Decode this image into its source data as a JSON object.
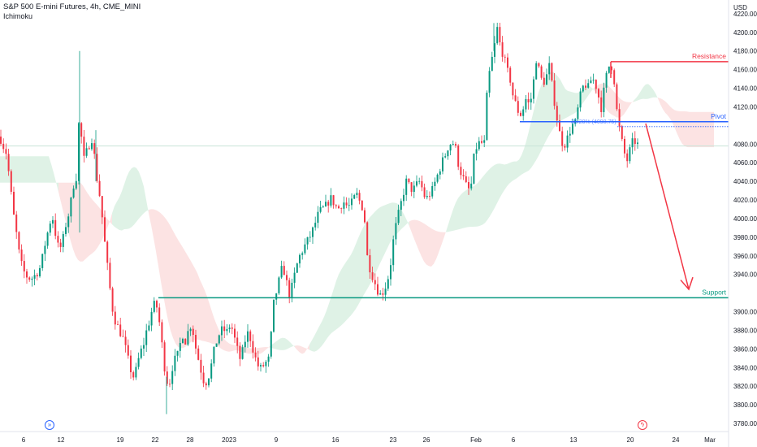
{
  "header": {
    "title": "S&P 500 E-mini Futures, 4h, CME_MINI",
    "indicator": "Ichimoku"
  },
  "axis": {
    "currency": "USD",
    "y_ticks": [
      4220,
      4200,
      4180,
      4160,
      4140,
      4120,
      4100,
      4080,
      4060,
      4040,
      4020,
      4000,
      3980,
      3960,
      3940,
      3920,
      3900,
      3880,
      3860,
      3840,
      3820,
      3800,
      3780
    ],
    "y_tick_labels": [
      "4220.00",
      "4200.00",
      "4180.00",
      "4160.00",
      "4140.00",
      "4120.00",
      "4100.00",
      "4080.00",
      "4060.00",
      "4040.00",
      "4020.00",
      "4000.00",
      "3980.00",
      "3960.00",
      "3940.00",
      "3920.00",
      "3900.00",
      "3880.00",
      "3860.00",
      "3840.00",
      "3820.00",
      "3800.00",
      "3780.00"
    ],
    "x_labels": [
      "6",
      "12",
      "19",
      "22",
      "28",
      "2023",
      "9",
      "16",
      "23",
      "26",
      "Feb",
      "6",
      "13",
      "20",
      "24",
      "Mar"
    ],
    "ylim": [
      3780,
      4226
    ]
  },
  "levels": {
    "resistance": {
      "label": "Resistance",
      "value_label": "4168.50",
      "value": 4168.5,
      "color": "#f23645"
    },
    "pivot": {
      "label": "Pivot",
      "value_label": "4104.00",
      "value": 4104.0,
      "color": "#2962ff"
    },
    "support": {
      "label": "Support",
      "value_label": "3915.00",
      "value": 3915.0,
      "color": "#089981"
    },
    "fib_label": "38.20% (4098.75)"
  },
  "colors": {
    "up": "#089981",
    "down": "#f23645",
    "cloud_up": "#d7efe0",
    "cloud_down": "#fbdcdc",
    "current_price_line": "#c9e4d8"
  },
  "icons": {
    "left_badge": "calendar-forward-icon",
    "right_badge": "lightning-icon"
  },
  "chart_data": {
    "type": "candlestick",
    "title": "S&P 500 E-mini Futures, 4h, CME_MINI",
    "series": [
      {
        "name": "price",
        "anchors": [
          [
            0,
            4088
          ],
          [
            3,
            4080
          ],
          [
            8,
            4070
          ],
          [
            12,
            4040
          ],
          [
            16,
            4008
          ],
          [
            20,
            3985
          ],
          [
            24,
            3960
          ],
          [
            28,
            3945
          ],
          [
            33,
            3938
          ],
          [
            38,
            3935
          ],
          [
            44,
            3940
          ],
          [
            50,
            3948
          ],
          [
            56,
            3975
          ],
          [
            60,
            3990
          ],
          [
            64,
            4005
          ],
          [
            68,
            3985
          ],
          [
            72,
            3968
          ],
          [
            76,
            3970
          ],
          [
            80,
            3990
          ],
          [
            86,
            4010
          ],
          [
            90,
            4035
          ],
          [
            94,
            4045
          ],
          [
            98,
            4120
          ],
          [
            102,
            4060
          ],
          [
            106,
            4070
          ],
          [
            110,
            4080
          ],
          [
            114,
            4088
          ],
          [
            118,
            4050
          ],
          [
            122,
            4030
          ],
          [
            126,
            4000
          ],
          [
            130,
            3965
          ],
          [
            134,
            3935
          ],
          [
            138,
            3905
          ],
          [
            142,
            3890
          ],
          [
            148,
            3878
          ],
          [
            152,
            3870
          ],
          [
            156,
            3855
          ],
          [
            160,
            3840
          ],
          [
            164,
            3830
          ],
          [
            168,
            3838
          ],
          [
            172,
            3855
          ],
          [
            176,
            3862
          ],
          [
            180,
            3878
          ],
          [
            184,
            3890
          ],
          [
            188,
            3905
          ],
          [
            192,
            3910
          ],
          [
            196,
            3890
          ],
          [
            200,
            3860
          ],
          [
            204,
            3830
          ],
          [
            208,
            3820
          ],
          [
            212,
            3840
          ],
          [
            216,
            3850
          ],
          [
            220,
            3855
          ],
          [
            224,
            3878
          ],
          [
            228,
            3868
          ],
          [
            232,
            3880
          ],
          [
            236,
            3888
          ],
          [
            240,
            3865
          ],
          [
            244,
            3850
          ],
          [
            248,
            3835
          ],
          [
            252,
            3822
          ],
          [
            256,
            3828
          ],
          [
            260,
            3842
          ],
          [
            264,
            3860
          ],
          [
            268,
            3872
          ],
          [
            272,
            3880
          ],
          [
            276,
            3880
          ],
          [
            280,
            3878
          ],
          [
            284,
            3888
          ],
          [
            288,
            3874
          ],
          [
            292,
            3860
          ],
          [
            296,
            3848
          ],
          [
            300,
            3862
          ],
          [
            304,
            3878
          ],
          [
            308,
            3872
          ],
          [
            312,
            3858
          ],
          [
            316,
            3845
          ],
          [
            320,
            3838
          ],
          [
            324,
            3842
          ],
          [
            328,
            3846
          ],
          [
            332,
            3850
          ],
          [
            336,
            3905
          ],
          [
            340,
            3920
          ],
          [
            344,
            3935
          ],
          [
            348,
            3950
          ],
          [
            352,
            3935
          ],
          [
            356,
            3918
          ],
          [
            360,
            3928
          ],
          [
            364,
            3945
          ],
          [
            368,
            3958
          ],
          [
            372,
            3965
          ],
          [
            376,
            3972
          ],
          [
            380,
            3978
          ],
          [
            384,
            3985
          ],
          [
            388,
            3995
          ],
          [
            392,
            4005
          ],
          [
            396,
            4010
          ],
          [
            400,
            4012
          ],
          [
            404,
            4018
          ],
          [
            408,
            4022
          ],
          [
            412,
            4015
          ],
          [
            416,
            4010
          ],
          [
            420,
            4015
          ],
          [
            424,
            4018
          ],
          [
            428,
            4012
          ],
          [
            432,
            4015
          ],
          [
            436,
            4022
          ],
          [
            440,
            4026
          ],
          [
            444,
            4015
          ],
          [
            448,
            4010
          ],
          [
            452,
            3960
          ],
          [
            456,
            3945
          ],
          [
            460,
            3935
          ],
          [
            464,
            3925
          ],
          [
            468,
            3918
          ],
          [
            472,
            3922
          ],
          [
            476,
            3930
          ],
          [
            480,
            3945
          ],
          [
            484,
            3975
          ],
          [
            488,
            3995
          ],
          [
            492,
            4010
          ],
          [
            496,
            4025
          ],
          [
            500,
            4040
          ],
          [
            504,
            4035
          ],
          [
            508,
            4030
          ],
          [
            512,
            4035
          ],
          [
            516,
            4040
          ],
          [
            520,
            4032
          ],
          [
            524,
            4020
          ],
          [
            528,
            4025
          ],
          [
            532,
            4030
          ],
          [
            536,
            4040
          ],
          [
            540,
            4050
          ],
          [
            544,
            4060
          ],
          [
            548,
            4068
          ],
          [
            552,
            4078
          ],
          [
            556,
            4082
          ],
          [
            560,
            4080
          ],
          [
            564,
            4060
          ],
          [
            568,
            4048
          ],
          [
            572,
            4040
          ],
          [
            576,
            4030
          ],
          [
            580,
            4035
          ],
          [
            584,
            4070
          ],
          [
            588,
            4080
          ],
          [
            592,
            4082
          ],
          [
            596,
            4078
          ],
          [
            600,
            4140
          ],
          [
            604,
            4165
          ],
          [
            608,
            4180
          ],
          [
            612,
            4205
          ],
          [
            616,
            4185
          ],
          [
            620,
            4175
          ],
          [
            624,
            4160
          ],
          [
            628,
            4150
          ],
          [
            632,
            4130
          ],
          [
            636,
            4120
          ],
          [
            640,
            4110
          ],
          [
            644,
            4118
          ],
          [
            648,
            4130
          ],
          [
            652,
            4120
          ],
          [
            656,
            4140
          ],
          [
            660,
            4172
          ],
          [
            664,
            4158
          ],
          [
            668,
            4145
          ],
          [
            672,
            4150
          ],
          [
            676,
            4165
          ],
          [
            680,
            4140
          ],
          [
            684,
            4118
          ],
          [
            688,
            4095
          ],
          [
            692,
            4082
          ],
          [
            696,
            4080
          ],
          [
            700,
            4090
          ],
          [
            704,
            4100
          ],
          [
            708,
            4102
          ],
          [
            712,
            4120
          ],
          [
            716,
            4138
          ],
          [
            720,
            4145
          ],
          [
            724,
            4140
          ],
          [
            728,
            4150
          ],
          [
            732,
            4148
          ],
          [
            736,
            4135
          ],
          [
            740,
            4118
          ],
          [
            744,
            4140
          ],
          [
            748,
            4160
          ],
          [
            752,
            4168
          ],
          [
            756,
            4150
          ],
          [
            760,
            4110
          ],
          [
            764,
            4090
          ],
          [
            768,
            4072
          ],
          [
            772,
            4062
          ],
          [
            776,
            4075
          ],
          [
            780,
            4085
          ],
          [
            784,
            4080
          ],
          [
            788,
            4078
          ]
        ]
      }
    ],
    "annotations": [
      "Resistance",
      "Pivot",
      "Support",
      "38.20% (4098.75)"
    ]
  }
}
